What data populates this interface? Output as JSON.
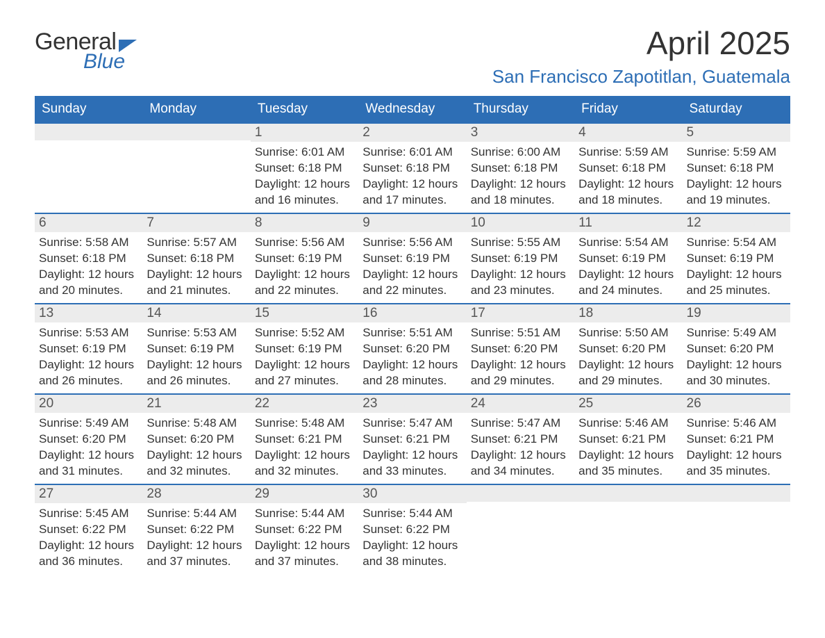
{
  "logo": {
    "text1": "General",
    "text2": "Blue"
  },
  "title": "April 2025",
  "location": "San Francisco Zapotitlan, Guatemala",
  "style": {
    "accent": "#2d6eb5",
    "header_bg": "#2d6eb5",
    "header_text": "#ffffff",
    "daynum_bg": "#ececec",
    "body_text": "#333333",
    "page_bg": "#ffffff",
    "title_fontsize": 46,
    "location_fontsize": 26,
    "weekday_fontsize": 19,
    "content_fontsize": 17
  },
  "weekdays": [
    "Sunday",
    "Monday",
    "Tuesday",
    "Wednesday",
    "Thursday",
    "Friday",
    "Saturday"
  ],
  "labels": {
    "sunrise": "Sunrise:",
    "sunset": "Sunset:",
    "daylight": "Daylight:"
  },
  "weeks": [
    [
      {
        "day": "",
        "sunrise": "",
        "sunset": "",
        "daylight": ""
      },
      {
        "day": "",
        "sunrise": "",
        "sunset": "",
        "daylight": ""
      },
      {
        "day": "1",
        "sunrise": "6:01 AM",
        "sunset": "6:18 PM",
        "daylight": "12 hours and 16 minutes."
      },
      {
        "day": "2",
        "sunrise": "6:01 AM",
        "sunset": "6:18 PM",
        "daylight": "12 hours and 17 minutes."
      },
      {
        "day": "3",
        "sunrise": "6:00 AM",
        "sunset": "6:18 PM",
        "daylight": "12 hours and 18 minutes."
      },
      {
        "day": "4",
        "sunrise": "5:59 AM",
        "sunset": "6:18 PM",
        "daylight": "12 hours and 18 minutes."
      },
      {
        "day": "5",
        "sunrise": "5:59 AM",
        "sunset": "6:18 PM",
        "daylight": "12 hours and 19 minutes."
      }
    ],
    [
      {
        "day": "6",
        "sunrise": "5:58 AM",
        "sunset": "6:18 PM",
        "daylight": "12 hours and 20 minutes."
      },
      {
        "day": "7",
        "sunrise": "5:57 AM",
        "sunset": "6:18 PM",
        "daylight": "12 hours and 21 minutes."
      },
      {
        "day": "8",
        "sunrise": "5:56 AM",
        "sunset": "6:19 PM",
        "daylight": "12 hours and 22 minutes."
      },
      {
        "day": "9",
        "sunrise": "5:56 AM",
        "sunset": "6:19 PM",
        "daylight": "12 hours and 22 minutes."
      },
      {
        "day": "10",
        "sunrise": "5:55 AM",
        "sunset": "6:19 PM",
        "daylight": "12 hours and 23 minutes."
      },
      {
        "day": "11",
        "sunrise": "5:54 AM",
        "sunset": "6:19 PM",
        "daylight": "12 hours and 24 minutes."
      },
      {
        "day": "12",
        "sunrise": "5:54 AM",
        "sunset": "6:19 PM",
        "daylight": "12 hours and 25 minutes."
      }
    ],
    [
      {
        "day": "13",
        "sunrise": "5:53 AM",
        "sunset": "6:19 PM",
        "daylight": "12 hours and 26 minutes."
      },
      {
        "day": "14",
        "sunrise": "5:53 AM",
        "sunset": "6:19 PM",
        "daylight": "12 hours and 26 minutes."
      },
      {
        "day": "15",
        "sunrise": "5:52 AM",
        "sunset": "6:19 PM",
        "daylight": "12 hours and 27 minutes."
      },
      {
        "day": "16",
        "sunrise": "5:51 AM",
        "sunset": "6:20 PM",
        "daylight": "12 hours and 28 minutes."
      },
      {
        "day": "17",
        "sunrise": "5:51 AM",
        "sunset": "6:20 PM",
        "daylight": "12 hours and 29 minutes."
      },
      {
        "day": "18",
        "sunrise": "5:50 AM",
        "sunset": "6:20 PM",
        "daylight": "12 hours and 29 minutes."
      },
      {
        "day": "19",
        "sunrise": "5:49 AM",
        "sunset": "6:20 PM",
        "daylight": "12 hours and 30 minutes."
      }
    ],
    [
      {
        "day": "20",
        "sunrise": "5:49 AM",
        "sunset": "6:20 PM",
        "daylight": "12 hours and 31 minutes."
      },
      {
        "day": "21",
        "sunrise": "5:48 AM",
        "sunset": "6:20 PM",
        "daylight": "12 hours and 32 minutes."
      },
      {
        "day": "22",
        "sunrise": "5:48 AM",
        "sunset": "6:21 PM",
        "daylight": "12 hours and 32 minutes."
      },
      {
        "day": "23",
        "sunrise": "5:47 AM",
        "sunset": "6:21 PM",
        "daylight": "12 hours and 33 minutes."
      },
      {
        "day": "24",
        "sunrise": "5:47 AM",
        "sunset": "6:21 PM",
        "daylight": "12 hours and 34 minutes."
      },
      {
        "day": "25",
        "sunrise": "5:46 AM",
        "sunset": "6:21 PM",
        "daylight": "12 hours and 35 minutes."
      },
      {
        "day": "26",
        "sunrise": "5:46 AM",
        "sunset": "6:21 PM",
        "daylight": "12 hours and 35 minutes."
      }
    ],
    [
      {
        "day": "27",
        "sunrise": "5:45 AM",
        "sunset": "6:22 PM",
        "daylight": "12 hours and 36 minutes."
      },
      {
        "day": "28",
        "sunrise": "5:44 AM",
        "sunset": "6:22 PM",
        "daylight": "12 hours and 37 minutes."
      },
      {
        "day": "29",
        "sunrise": "5:44 AM",
        "sunset": "6:22 PM",
        "daylight": "12 hours and 37 minutes."
      },
      {
        "day": "30",
        "sunrise": "5:44 AM",
        "sunset": "6:22 PM",
        "daylight": "12 hours and 38 minutes."
      },
      {
        "day": "",
        "sunrise": "",
        "sunset": "",
        "daylight": ""
      },
      {
        "day": "",
        "sunrise": "",
        "sunset": "",
        "daylight": ""
      },
      {
        "day": "",
        "sunrise": "",
        "sunset": "",
        "daylight": ""
      }
    ]
  ]
}
